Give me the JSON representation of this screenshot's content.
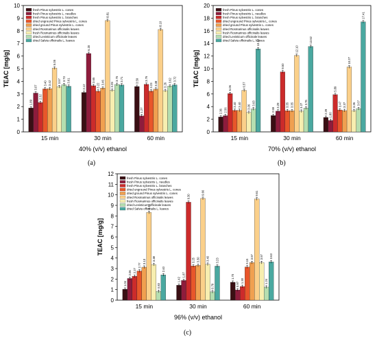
{
  "figure": {
    "captions": [
      "(a)",
      "(b)",
      "(c)"
    ]
  },
  "legend_items": [
    {
      "label": "fresh Pinus sylvestris L. cones",
      "color": "#3a0f14"
    },
    {
      "label": "fresh Pinus sylvestris L. needles",
      "color": "#8e1c3c"
    },
    {
      "label": "fresh Pinus sylvestris L. branches",
      "color": "#cc2b2b"
    },
    {
      "label": "dried unground Pinus sylvestris L. cones",
      "color": "#e8562a"
    },
    {
      "label": "dried ground Pinus sylvestris L. cones",
      "color": "#f0a050"
    },
    {
      "label": "dried Rosmarinus officinalis leaves",
      "color": "#fbd08a"
    },
    {
      "label": "fresh Rosmarinus officinalis leaves",
      "color": "#f7eeb0"
    },
    {
      "label": "dried Levisticum officinale leaves",
      "color": "#b5deb0"
    },
    {
      "label": "dried Salvia officinalis L. leaves",
      "color": "#4aa8a0"
    }
  ],
  "chart_data": [
    {
      "type": "bar",
      "panel": "(a)",
      "title": "",
      "ylabel": "TEAC [mg/g]",
      "xlabel": "40% (v/v) ethanol",
      "ylim": [
        0,
        10
      ],
      "yticks": [
        0,
        1,
        2,
        3,
        4,
        5,
        6,
        7,
        8,
        9,
        10
      ],
      "categories": [
        "15 min",
        "30 min",
        "60 min"
      ],
      "series": [
        {
          "name": "fresh Pinus sylvestris L. cones",
          "values": [
            1.89,
            3.12,
            3.59
          ],
          "labels": [
            "1.89",
            "3.12",
            "3.59"
          ]
        },
        {
          "name": "fresh Pinus sylvestris L. needles",
          "values": [
            3.07,
            6.2,
            1.27
          ],
          "labels": [
            "3.07",
            "6.20",
            "1.27"
          ]
        },
        {
          "name": "fresh Pinus sylvestris L. branches",
          "values": [
            2.32,
            3.65,
            3.76
          ],
          "labels": [
            "2.32",
            "3.65",
            "3.76"
          ]
        },
        {
          "name": "dried unground Pinus sylvestris L. cones",
          "values": [
            3.4,
            3.22,
            3.23
          ],
          "labels": [
            "3.40",
            "3.22",
            "3.23"
          ]
        },
        {
          "name": "dried ground Pinus sylvestris L. cones",
          "values": [
            3.42,
            3.46,
            3.38
          ],
          "labels": [
            "3.42",
            "3.46",
            "3.38"
          ]
        },
        {
          "name": "dried Rosmarinus officinalis leaves",
          "values": [
            5.05,
            8.81,
            8.1
          ],
          "labels": [
            "5.05",
            "8.81",
            "8.10"
          ]
        },
        {
          "name": "fresh Rosmarinus officinalis leaves",
          "values": [
            3.57,
            3.29,
            3.26
          ],
          "labels": [
            "3.57",
            "3.29",
            "3.26"
          ]
        },
        {
          "name": "dried Levisticum officinale leaves",
          "values": [
            3.73,
            3.75,
            3.62
          ],
          "labels": [
            "3.73",
            "3.75",
            "3.62"
          ]
        },
        {
          "name": "dried Salvia officinalis L. leaves",
          "values": [
            3.61,
            3.71,
            3.72
          ],
          "labels": [
            "3.61",
            "3.71",
            "3.72"
          ]
        }
      ]
    },
    {
      "type": "bar",
      "panel": "(b)",
      "title": "",
      "ylabel": "TEAC [mg/g]",
      "xlabel": "70% (v/v) ethanol",
      "ylim": [
        0,
        20
      ],
      "yticks": [
        0,
        2,
        4,
        6,
        8,
        10,
        12,
        14,
        16,
        18,
        20
      ],
      "categories": [
        "15 min",
        "30 min",
        "60 min"
      ],
      "series": [
        {
          "name": "fresh Pinus sylvestris L. cones",
          "values": [
            2.36,
            2.59,
            2.29
          ],
          "labels": [
            "2.36",
            "2.59",
            "2.29"
          ]
        },
        {
          "name": "fresh Pinus sylvestris L. needles",
          "values": [
            2.56,
            3.29,
            1.8
          ],
          "labels": [
            "2.56",
            "3.29",
            "1.80"
          ]
        },
        {
          "name": "fresh Pinus sylvestris L. branches",
          "values": [
            6.06,
            9.5,
            5.89
          ],
          "labels": [
            "6.06",
            "9.50",
            "5.89"
          ]
        },
        {
          "name": "dried unground Pinus sylvestris L. cones",
          "values": [
            3.4,
            3.35,
            3.47
          ],
          "labels": [
            "3.40",
            "3.35",
            "3.47"
          ]
        },
        {
          "name": "dried ground Pinus sylvestris L. cones",
          "values": [
            3.4,
            3.35,
            3.37
          ],
          "labels": [
            "3.40",
            "3.35",
            "3.37"
          ]
        },
        {
          "name": "dried Rosmarinus officinalis leaves",
          "values": [
            6.57,
            12.1,
            10.27
          ],
          "labels": [
            "6.57",
            "12.10",
            "10.27"
          ]
        },
        {
          "name": "fresh Rosmarinus officinalis leaves",
          "values": [
            3.06,
            3.27,
            3.36
          ],
          "labels": [
            "3.06",
            "3.27",
            "3.36"
          ]
        },
        {
          "name": "dried Levisticum officinale leaves",
          "values": [
            3.63,
            3.76,
            3.67
          ],
          "labels": [
            "3.63",
            "3.76",
            "3.67"
          ]
        },
        {
          "name": "dried Salvia officinalis L. leaves",
          "values": [
            13.12,
            13.52,
            17.41
          ],
          "labels": [
            "13.12",
            "13.52",
            "17.41"
          ]
        }
      ]
    },
    {
      "type": "bar",
      "panel": "(c)",
      "title": "",
      "ylabel": "TEAC [mg/g]",
      "xlabel": "96% (v/v) ethanol",
      "ylim": [
        0,
        12
      ],
      "yticks": [
        0,
        1,
        2,
        3,
        4,
        5,
        6,
        7,
        8,
        9,
        10,
        11,
        12
      ],
      "categories": [
        "15 min",
        "30 min",
        "60 min"
      ],
      "series": [
        {
          "name": "fresh Pinus sylvestris L. cones",
          "values": [
            1.04,
            1.42,
            1.7
          ],
          "labels": [
            "1.04",
            "1.42",
            "1.70"
          ]
        },
        {
          "name": "fresh Pinus sylvestris L. needles",
          "values": [
            2.06,
            1.87,
            0.97
          ],
          "labels": [
            "2.06",
            "1.87",
            "0.97"
          ]
        },
        {
          "name": "fresh Pinus sylvestris L. branches",
          "values": [
            2.27,
            9.3,
            1.3
          ],
          "labels": [
            "2.27",
            "9.30",
            "1.30"
          ]
        },
        {
          "name": "dried unground Pinus sylvestris L. cones",
          "values": [
            2.77,
            3.25,
            3.15
          ],
          "labels": [
            "2.77",
            "3.25",
            "3.15"
          ]
        },
        {
          "name": "dried ground Pinus sylvestris L. cones",
          "values": [
            3.13,
            3.3,
            3.57
          ],
          "labels": [
            "3.13",
            "3.30",
            "3.57"
          ]
        },
        {
          "name": "dried Rosmarinus officinalis leaves",
          "values": [
            8.33,
            9.66,
            9.61
          ],
          "labels": [
            "8.33",
            "9.66",
            "9.61"
          ]
        },
        {
          "name": "fresh Rosmarinus officinalis leaves",
          "values": [
            3.38,
            3.4,
            3.57
          ],
          "labels": [
            "3.38",
            "3.40",
            "3.57"
          ]
        },
        {
          "name": "dried Levisticum officinale leaves",
          "values": [
            0.83,
            0.79,
            1.24
          ],
          "labels": [
            "0.83",
            "0.79",
            "1.24"
          ]
        },
        {
          "name": "dried Salvia officinalis L. leaves",
          "values": [
            2.4,
            3.23,
            3.63
          ],
          "labels": [
            "2.40",
            "3.23",
            "3.63"
          ]
        }
      ]
    }
  ]
}
